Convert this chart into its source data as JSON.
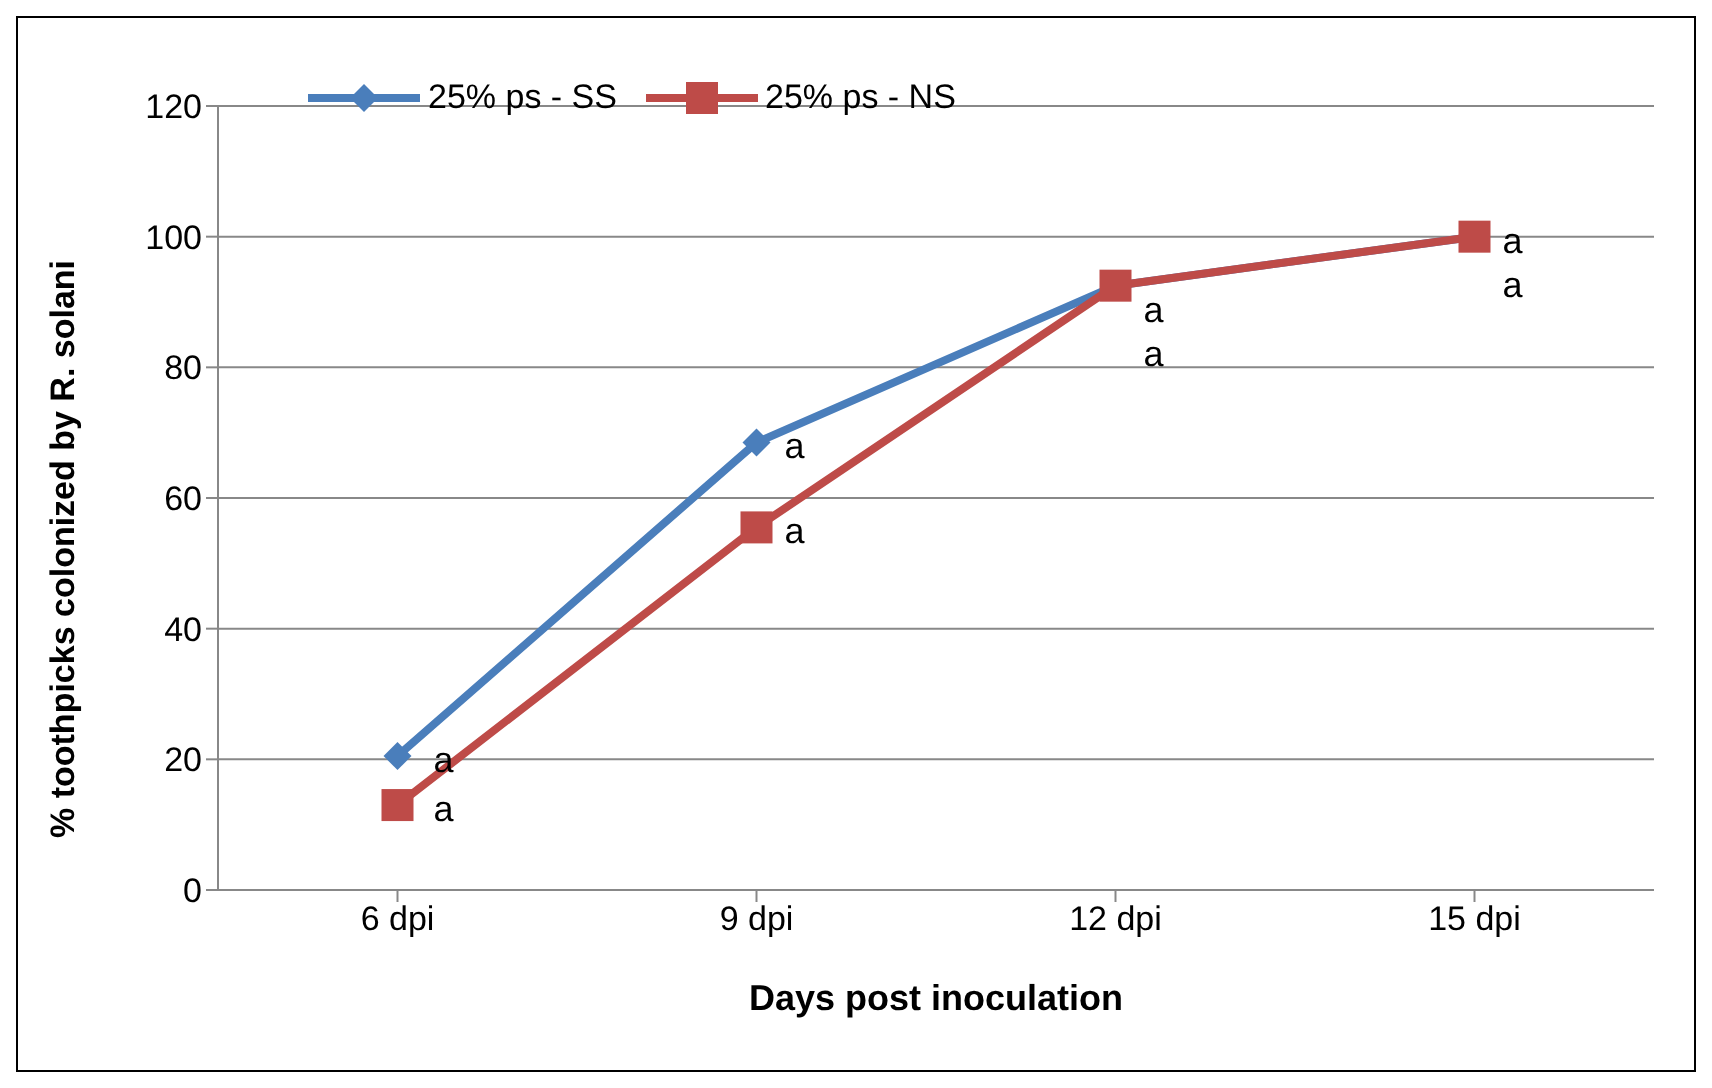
{
  "chart_data": {
    "type": "line",
    "xlabel": "Days post inoculation",
    "ylabel": "% toothpicks colonized by R. solani",
    "categories": [
      "6 dpi",
      "9 dpi",
      "12 dpi",
      "15 dpi"
    ],
    "series": [
      {
        "name": "25% ps - SS",
        "color": "#4a7ebb",
        "marker": "diamond",
        "values": [
          20.5,
          68.5,
          92.5,
          100
        ]
      },
      {
        "name": "25% ps - NS",
        "color": "#be4b48",
        "marker": "square",
        "values": [
          13,
          55.5,
          92.5,
          100
        ]
      }
    ],
    "ylim": [
      0,
      120
    ],
    "yticks": [
      0,
      20,
      40,
      60,
      80,
      100,
      120
    ],
    "grid": "y",
    "legend": "top left",
    "annotations": [
      {
        "text": "a",
        "x": "6 dpi",
        "y": 20.5
      },
      {
        "text": "a",
        "x": "6 dpi",
        "y": 13
      },
      {
        "text": "a",
        "x": "9 dpi",
        "y": 68.5
      },
      {
        "text": "a",
        "x": "9 dpi",
        "y": 55.5
      },
      {
        "text": "a",
        "x": "12 dpi",
        "y": 92.5
      },
      {
        "text": "a",
        "x": "12 dpi",
        "y": 92.5
      },
      {
        "text": "a",
        "x": "15 dpi",
        "y": 100
      },
      {
        "text": "a",
        "x": "15 dpi",
        "y": 100
      }
    ]
  }
}
